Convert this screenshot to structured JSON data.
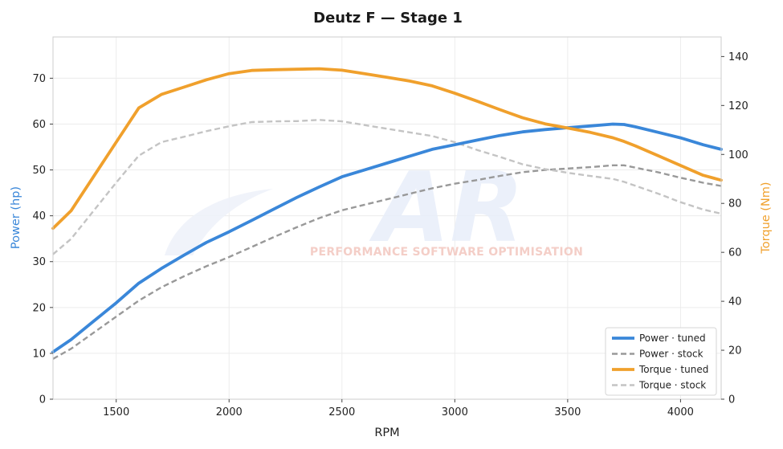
{
  "chart_data": {
    "type": "line",
    "title": "Deutz F — Stage 1",
    "xlabel": "RPM",
    "ylabel_left": "Power (hp)",
    "ylabel_right": "Torque (Nm)",
    "xlim": [
      1220,
      4180
    ],
    "ylim_left": [
      0,
      79
    ],
    "ylim_right": [
      0,
      148
    ],
    "x_ticks": [
      1500,
      2000,
      2500,
      3000,
      3500,
      4000
    ],
    "y_ticks_left": [
      0,
      10,
      20,
      30,
      40,
      50,
      60,
      70
    ],
    "y_ticks_right": [
      0,
      20,
      40,
      60,
      80,
      100,
      120,
      140
    ],
    "grid": true,
    "legend_position": "bottom-right",
    "colors": {
      "power_tuned": "#3a87d9",
      "power_stock": "#999999",
      "torque_tuned": "#f0a02c",
      "torque_stock": "#c4c4c4",
      "left_axis_label": "#3a87d9",
      "right_axis_label": "#f0a02c"
    },
    "x": [
      1220,
      1300,
      1400,
      1500,
      1600,
      1700,
      1800,
      1900,
      2000,
      2100,
      2200,
      2300,
      2400,
      2500,
      2600,
      2700,
      2800,
      2900,
      3000,
      3100,
      3200,
      3300,
      3400,
      3500,
      3600,
      3700,
      3750,
      3800,
      3900,
      4000,
      4100,
      4180
    ],
    "series": [
      {
        "name": "Power · tuned",
        "axis": "left",
        "style": "solid",
        "color": "#3a87d9",
        "values": [
          10.3,
          13.0,
          17.0,
          21.0,
          25.3,
          28.5,
          31.4,
          34.2,
          36.5,
          39.0,
          41.5,
          44.0,
          46.3,
          48.5,
          50.0,
          51.5,
          53.0,
          54.5,
          55.5,
          56.5,
          57.5,
          58.3,
          58.8,
          59.2,
          59.6,
          60.0,
          59.9,
          59.4,
          58.2,
          57.0,
          55.5,
          54.5
        ]
      },
      {
        "name": "Power · stock",
        "axis": "left",
        "style": "dashed",
        "color": "#999999",
        "values": [
          8.8,
          11.0,
          14.5,
          18.0,
          21.5,
          24.4,
          26.8,
          29.0,
          31.0,
          33.2,
          35.4,
          37.5,
          39.5,
          41.2,
          42.4,
          43.6,
          44.8,
          46.0,
          47.0,
          47.8,
          48.7,
          49.5,
          50.0,
          50.3,
          50.6,
          51.0,
          51.0,
          50.5,
          49.5,
          48.3,
          47.2,
          46.5
        ]
      },
      {
        "name": "Torque · tuned",
        "axis": "right",
        "style": "solid",
        "color": "#f0a02c",
        "values": [
          69.8,
          77,
          91,
          105,
          119,
          124.5,
          127.5,
          130.5,
          133.0,
          134.3,
          134.6,
          134.8,
          135.0,
          134.4,
          133.0,
          131.5,
          130.0,
          128.0,
          125.0,
          121.7,
          118.3,
          115.0,
          112.5,
          110.8,
          109.0,
          106.8,
          105.3,
          103.5,
          99.5,
          95.5,
          91.5,
          89.5
        ]
      },
      {
        "name": "Torque · stock",
        "axis": "right",
        "style": "dashed",
        "color": "#c4c4c4",
        "values": [
          59.2,
          65.5,
          77,
          88.5,
          99.5,
          105,
          107.2,
          109.5,
          111.5,
          113.2,
          113.5,
          113.6,
          114.1,
          113.5,
          112.0,
          110.5,
          109.0,
          107.5,
          105.0,
          101.8,
          99.0,
          96.0,
          94.0,
          92.5,
          91.2,
          90.0,
          88.8,
          87.2,
          84.0,
          80.5,
          77.5,
          75.8
        ]
      }
    ]
  },
  "watermark": {
    "logo_text": "AR",
    "tagline": "PERFORMANCE SOFTWARE OPTIMISATION"
  }
}
